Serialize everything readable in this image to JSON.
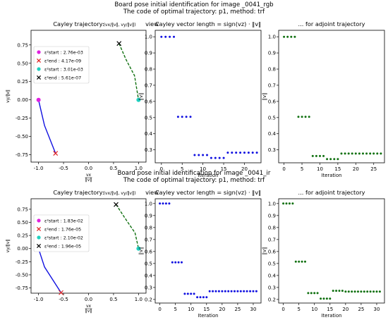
{
  "figures": [
    {
      "title_line1": "Board pose initial identification for image _0041_rgb",
      "title_line2": "The code of optimal trajectory: p1, method: trf",
      "panels": {
        "cayley": {
          "title": "Cayley trajectory: (v_x/||v||, v_y/||v||) view",
          "xlabel": "v_x/||v||",
          "ylabel": "v_y/||v||",
          "xticks": [
            "-1.0",
            "-0.5",
            "0.0",
            "0.5",
            "1.0"
          ],
          "yticks": [
            "0.75",
            "0.50",
            "0.25",
            "0.00",
            "-0.25",
            "-0.50",
            "-0.75"
          ],
          "legend": [
            {
              "label": "ε²start : 2.76e-03",
              "marker": "dot",
              "color": "#e020e0"
            },
            {
              "label": "ε²end : 4.17e-09",
              "marker": "x",
              "color": "#e02020"
            },
            {
              "label": "ε²start : 3.01e-03",
              "marker": "dot",
              "color": "#20d0c0"
            },
            {
              "label": "ε²end : 5.61e-07",
              "marker": "x",
              "color": "#000000"
            }
          ]
        },
        "length": {
          "title": "Cayley vector length = sign(v_z)·||v||",
          "xlabel": "Iteration",
          "ylabel": "||v||",
          "xticks": [
            "0",
            "5",
            "10",
            "15",
            "20"
          ],
          "yticks": [
            "1.0",
            "0.9",
            "0.8",
            "0.7",
            "0.6",
            "0.5",
            "0.4",
            "0.3"
          ]
        },
        "adjoint": {
          "title": "... for adjoint trajectory",
          "xlabel": "Iteration",
          "ylabel": "||v||",
          "xticks": [
            "0",
            "5",
            "10",
            "15",
            "20",
            "25"
          ],
          "yticks": [
            "1.0",
            "0.9",
            "0.8",
            "0.7",
            "0.6",
            "0.5",
            "0.4",
            "0.3"
          ]
        }
      }
    },
    {
      "title_line1": "Board pose initial identification for image _0041_ir",
      "title_line2": "The code of optimal trajectory: p1, method: trf",
      "panels": {
        "cayley": {
          "title": "Cayley trajectory: (v_x/||v||, v_y/||v||) view",
          "xlabel": "v_x/||v||",
          "ylabel": "v_y/||v||",
          "xticks": [
            "-1.0",
            "-0.5",
            "0.0",
            "0.5",
            "1.0"
          ],
          "yticks": [
            "0.75",
            "0.50",
            "0.25",
            "0.00",
            "-0.25",
            "-0.50",
            "-0.75"
          ],
          "legend": [
            {
              "label": "ε²start : 1.83e-02",
              "marker": "dot",
              "color": "#e020e0"
            },
            {
              "label": "ε²end : 1.76e-05",
              "marker": "x",
              "color": "#e02020"
            },
            {
              "label": "ε²start : 2.10e-02",
              "marker": "dot",
              "color": "#20d0c0"
            },
            {
              "label": "ε²end : 1.96e-05",
              "marker": "x",
              "color": "#000000"
            }
          ]
        },
        "length": {
          "title": "Cayley vector length = sign(v_z)·||v||",
          "xlabel": "Iteration",
          "ylabel": "||v||",
          "xticks": [
            "0",
            "5",
            "10",
            "15",
            "20",
            "25",
            "30"
          ],
          "yticks": [
            "1.0",
            "0.9",
            "0.8",
            "0.7",
            "0.6",
            "0.5",
            "0.4",
            "0.3",
            "0.2"
          ]
        },
        "adjoint": {
          "title": "... for adjoint trajectory",
          "xlabel": "Iteration",
          "ylabel": "||v||",
          "xticks": [
            "0",
            "5",
            "10",
            "15",
            "20",
            "25",
            "30"
          ],
          "yticks": [
            "1.0",
            "0.9",
            "0.8",
            "0.7",
            "0.6",
            "0.5",
            "0.4",
            "0.3",
            "0.2"
          ]
        }
      }
    }
  ],
  "chart_data": [
    {
      "type": "line",
      "title": "Cayley trajectory: (v_x/||v||, v_y/||v||) view",
      "xlabel": "v_x/||v||",
      "ylabel": "v_y/||v||",
      "xlim": [
        -1.15,
        1.15
      ],
      "ylim": [
        -0.85,
        0.95
      ],
      "legend_position": "top-left",
      "series": [
        {
          "color": "#1010e0",
          "style": "solid",
          "x": [
            -1.0,
            -0.96,
            -0.88,
            -0.66
          ],
          "y": [
            0.0,
            -0.12,
            -0.35,
            -0.73
          ]
        },
        {
          "color": "#107010",
          "style": "dashed",
          "x": [
            0.61,
            0.75,
            0.92,
            1.0
          ],
          "y": [
            0.77,
            0.55,
            0.33,
            0.0
          ]
        }
      ],
      "points": [
        {
          "x": -1.0,
          "y": 0.0,
          "marker": "dot",
          "color": "#e020e0"
        },
        {
          "x": -0.66,
          "y": -0.73,
          "marker": "x",
          "color": "#e02020"
        },
        {
          "x": 1.0,
          "y": 0.0,
          "marker": "dot",
          "color": "#20d0c0"
        },
        {
          "x": 0.61,
          "y": 0.77,
          "marker": "x",
          "color": "#000000"
        }
      ]
    },
    {
      "type": "scatter",
      "title": "Cayley vector length = sign(v_z)·||v||",
      "xlabel": "Iteration",
      "ylabel": "||v||",
      "xlim": [
        -1.5,
        24
      ],
      "ylim": [
        0.22,
        1.04
      ],
      "series": [
        {
          "color": "#1010e0",
          "x": [
            0,
            1,
            2,
            3,
            4,
            5,
            6,
            7,
            8,
            9,
            10,
            11,
            12,
            13,
            14,
            15,
            16,
            17,
            18,
            19,
            20,
            21,
            22,
            23
          ],
          "y": [
            1.0,
            1.0,
            1.0,
            1.0,
            0.505,
            0.505,
            0.505,
            0.505,
            0.268,
            0.268,
            0.268,
            0.268,
            0.25,
            0.25,
            0.25,
            0.25,
            0.283,
            0.283,
            0.283,
            0.283,
            0.283,
            0.283,
            0.283,
            0.283
          ]
        }
      ]
    },
    {
      "type": "scatter",
      "title": "... for adjoint trajectory",
      "xlabel": "Iteration",
      "ylabel": "||v||",
      "xlim": [
        -1.5,
        28
      ],
      "ylim": [
        0.22,
        1.04
      ],
      "series": [
        {
          "color": "#107010",
          "x": [
            0,
            1,
            2,
            3,
            4,
            5,
            6,
            7,
            8,
            9,
            10,
            11,
            12,
            13,
            14,
            15,
            16,
            17,
            18,
            19,
            20,
            21,
            22,
            23,
            24,
            25,
            26,
            27
          ],
          "y": [
            1.0,
            1.0,
            1.0,
            1.0,
            0.505,
            0.505,
            0.505,
            0.505,
            0.262,
            0.262,
            0.262,
            0.262,
            0.243,
            0.243,
            0.243,
            0.243,
            0.277,
            0.277,
            0.277,
            0.277,
            0.277,
            0.277,
            0.277,
            0.277,
            0.277,
            0.277,
            0.277,
            0.277
          ]
        }
      ]
    },
    {
      "type": "line",
      "title": "Cayley trajectory: (v_x/||v||, v_y/||v||) view",
      "xlabel": "v_x/||v||",
      "ylabel": "v_y/||v||",
      "xlim": [
        -1.15,
        1.15
      ],
      "ylim": [
        -0.85,
        0.95
      ],
      "legend_position": "top-left",
      "series": [
        {
          "color": "#1010e0",
          "style": "solid",
          "x": [
            -1.0,
            -0.96,
            -0.88,
            -0.55
          ],
          "y": [
            0.0,
            -0.12,
            -0.35,
            -0.84
          ]
        },
        {
          "color": "#107010",
          "style": "dashed",
          "x": [
            0.55,
            0.75,
            0.93,
            1.0
          ],
          "y": [
            0.84,
            0.55,
            0.3,
            0.0
          ]
        }
      ],
      "points": [
        {
          "x": -1.0,
          "y": 0.0,
          "marker": "dot",
          "color": "#e020e0"
        },
        {
          "x": -0.55,
          "y": -0.84,
          "marker": "x",
          "color": "#e02020"
        },
        {
          "x": 1.0,
          "y": 0.0,
          "marker": "dot",
          "color": "#20d0c0"
        },
        {
          "x": 0.55,
          "y": 0.84,
          "marker": "x",
          "color": "#000000"
        }
      ]
    },
    {
      "type": "scatter",
      "title": "Cayley vector length = sign(v_z)·||v||",
      "xlabel": "Iteration",
      "ylabel": "||v||",
      "xlim": [
        -1.5,
        32.5
      ],
      "ylim": [
        0.17,
        1.04
      ],
      "series": [
        {
          "color": "#1010e0",
          "x": [
            0,
            1,
            2,
            3,
            4,
            5,
            6,
            7,
            8,
            9,
            10,
            11,
            12,
            13,
            14,
            15,
            16,
            17,
            18,
            19,
            20,
            21,
            22,
            23,
            24,
            25,
            26,
            27,
            28,
            29,
            30,
            31
          ],
          "y": [
            1.0,
            1.0,
            1.0,
            1.0,
            0.51,
            0.51,
            0.51,
            0.51,
            0.247,
            0.247,
            0.247,
            0.247,
            0.218,
            0.218,
            0.218,
            0.218,
            0.268,
            0.268,
            0.268,
            0.268,
            0.268,
            0.268,
            0.268,
            0.268,
            0.268,
            0.268,
            0.268,
            0.268,
            0.268,
            0.268,
            0.268,
            0.268
          ]
        }
      ]
    },
    {
      "type": "scatter",
      "title": "... for adjoint trajectory",
      "xlabel": "Iteration",
      "ylabel": "||v||",
      "xlim": [
        -1.5,
        32.5
      ],
      "ylim": [
        0.17,
        1.04
      ],
      "series": [
        {
          "color": "#107010",
          "x": [
            0,
            1,
            2,
            3,
            4,
            5,
            6,
            7,
            8,
            9,
            10,
            11,
            12,
            13,
            14,
            15,
            16,
            17,
            18,
            19,
            20,
            21,
            22,
            23,
            24,
            25,
            26,
            27,
            28,
            29,
            30,
            31
          ],
          "y": [
            1.0,
            1.0,
            1.0,
            1.0,
            0.515,
            0.515,
            0.515,
            0.515,
            0.253,
            0.253,
            0.253,
            0.253,
            0.207,
            0.207,
            0.207,
            0.207,
            0.272,
            0.272,
            0.272,
            0.272,
            0.265,
            0.265,
            0.265,
            0.265,
            0.265,
            0.265,
            0.265,
            0.265,
            0.265,
            0.265,
            0.265,
            0.265
          ]
        }
      ]
    }
  ]
}
